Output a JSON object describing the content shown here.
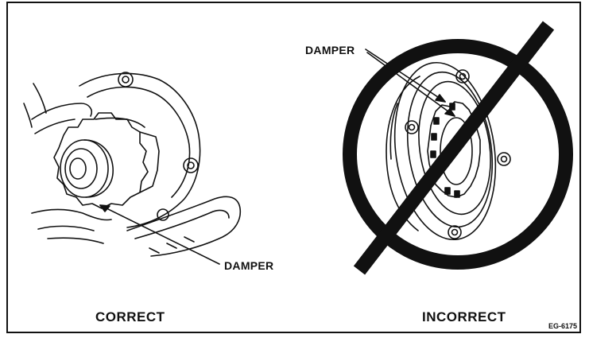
{
  "panels": {
    "correct": {
      "caption": "CORRECT",
      "callout": "DAMPER"
    },
    "incorrect": {
      "caption": "INCORRECT",
      "callout": "DAMPER"
    }
  },
  "figure_code": "EG-6175",
  "colors": {
    "line": "#111111",
    "background": "#ffffff"
  }
}
